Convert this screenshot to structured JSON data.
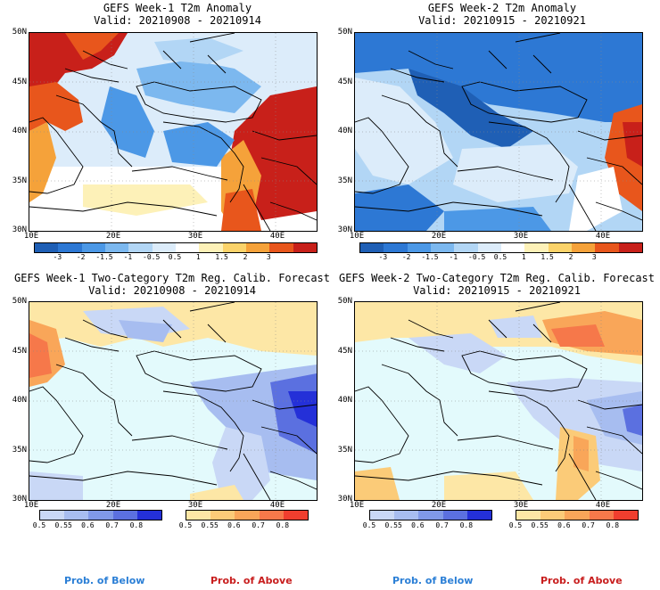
{
  "panels": [
    {
      "title": "GEFS Week-1 T2m Anomaly",
      "valid": "Valid: 20210908 - 20210914"
    },
    {
      "title": "GEFS Week-2 T2m Anomaly",
      "valid": "Valid: 20210915 - 20210921"
    },
    {
      "title": "GEFS Week-1 Two-Category T2m Reg. Calib. Forecast",
      "valid": "Valid: 20210908 - 20210914"
    },
    {
      "title": "GEFS Week-2 Two-Category T2m Reg. Calib. Forecast",
      "valid": "Valid: 20210915 - 20210921"
    }
  ],
  "lat_labels": [
    "50N",
    "45N",
    "40N",
    "35N",
    "30N"
  ],
  "lon_labels": [
    "10E",
    "20E",
    "30E",
    "40E"
  ],
  "anomaly_colorbar": {
    "labels": [
      "-3",
      "-2",
      "-1.5",
      "-1",
      "-0.5",
      "0.5",
      "1",
      "1.5",
      "2",
      "3"
    ],
    "colors": [
      "#1f5fb5",
      "#2d78d4",
      "#4c98e6",
      "#7cb8ef",
      "#b2d6f5",
      "#dcecfa",
      "#ffffff",
      "#fdf1b8",
      "#fbd36a",
      "#f5a23a",
      "#e8561c",
      "#c8201a"
    ]
  },
  "prob_below": {
    "labels": [
      "0.5",
      "0.55",
      "0.6",
      "0.7",
      "0.8"
    ],
    "colors": [
      "#c9d8f6",
      "#a7bdf0",
      "#8099e8",
      "#5b70e0",
      "#2430d8"
    ]
  },
  "prob_above": {
    "labels": [
      "0.5",
      "0.55",
      "0.6",
      "0.7",
      "0.8"
    ],
    "colors": [
      "#fde7a6",
      "#fbcb78",
      "#f9a659",
      "#f6784a",
      "#f03e2e"
    ]
  },
  "legend": {
    "below": "Prob. of Below",
    "above": "Prob. of Above"
  },
  "colors": {
    "below_text": "#2b7fd6",
    "above_text": "#c81e1e",
    "sea_anomaly": "#ffffff",
    "sea_prob": "#e3fafc"
  }
}
